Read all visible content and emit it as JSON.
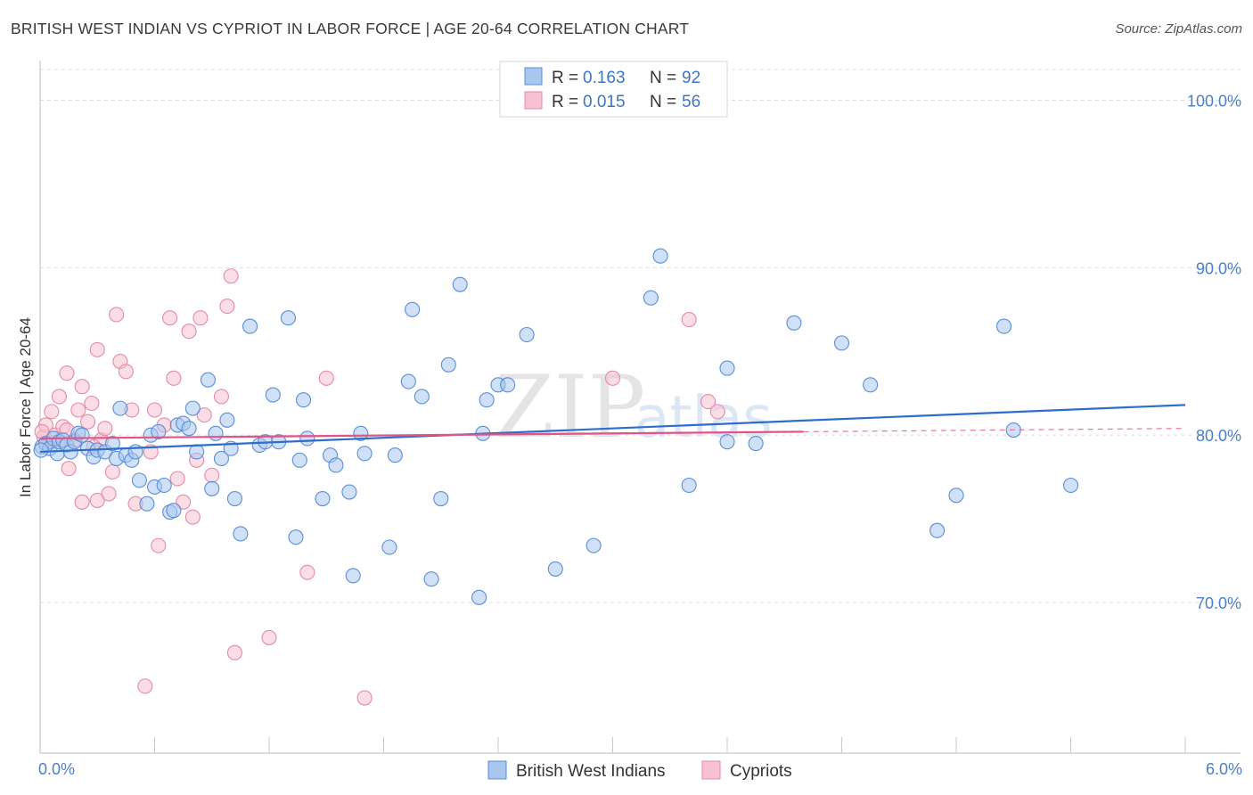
{
  "title": "BRITISH WEST INDIAN VS CYPRIOT IN LABOR FORCE | AGE 20-64 CORRELATION CHART",
  "source": "Source: ZipAtlas.com",
  "watermark": {
    "zip": "ZIP",
    "atlas": "atlas"
  },
  "legend_top": {
    "r_label": "R =",
    "n_label": "N =",
    "rows": [
      {
        "r": "0.163",
        "n": "92"
      },
      {
        "r": "0.015",
        "n": "56"
      }
    ]
  },
  "colors": {
    "blue_fill": "#a9c6ef",
    "blue_stroke": "#5a8fd6",
    "blue_line": "#2f6dcc",
    "pink_fill": "#f7c1d1",
    "pink_stroke": "#e58aa6",
    "pink_line": "#e05585",
    "tick_text": "#4a7fc9",
    "grid": "#dcdcdc"
  },
  "chart_data": {
    "type": "scatter",
    "title": "BRITISH WEST INDIAN VS CYPRIOT IN LABOR FORCE | AGE 20-64 CORRELATION CHART",
    "xlabel": "",
    "ylabel": "In Labor Force | Age 20-64",
    "xlim": [
      0,
      6
    ],
    "ylim": [
      61,
      102
    ],
    "x_tick_labels": [
      "0.0%",
      "6.0%"
    ],
    "y_ticks": [
      70,
      80,
      90,
      100
    ],
    "y_tick_labels": [
      "70.0%",
      "80.0%",
      "90.0%",
      "100.0%"
    ],
    "grid": "horizontal dashed",
    "legend_position": "bottom",
    "series": [
      {
        "name": "British West Indians",
        "color": "#a9c6ef",
        "trend": {
          "x": [
            0,
            6
          ],
          "y": [
            79.0,
            81.8
          ]
        },
        "points": [
          [
            0.01,
            79.3
          ],
          [
            0.03,
            79.5
          ],
          [
            0.05,
            79.2
          ],
          [
            0.07,
            79.8
          ],
          [
            0.09,
            78.9
          ],
          [
            0.1,
            79.6
          ],
          [
            0.12,
            79.7
          ],
          [
            0.14,
            79.4
          ],
          [
            0.16,
            79.0
          ],
          [
            0.18,
            79.6
          ],
          [
            0.2,
            80.1
          ],
          [
            0.22,
            80.0
          ],
          [
            0.25,
            79.2
          ],
          [
            0.28,
            78.7
          ],
          [
            0.3,
            79.1
          ],
          [
            0.34,
            79.0
          ],
          [
            0.38,
            79.5
          ],
          [
            0.4,
            78.6
          ],
          [
            0.42,
            81.6
          ],
          [
            0.45,
            78.8
          ],
          [
            0.48,
            78.5
          ],
          [
            0.5,
            79.0
          ],
          [
            0.52,
            77.3
          ],
          [
            0.56,
            75.9
          ],
          [
            0.58,
            80.0
          ],
          [
            0.6,
            76.9
          ],
          [
            0.62,
            80.2
          ],
          [
            0.65,
            77.0
          ],
          [
            0.68,
            75.4
          ],
          [
            0.7,
            75.5
          ],
          [
            0.72,
            80.6
          ],
          [
            0.75,
            80.7
          ],
          [
            0.78,
            80.4
          ],
          [
            0.8,
            81.6
          ],
          [
            0.82,
            79.0
          ],
          [
            0.88,
            83.3
          ],
          [
            0.9,
            76.8
          ],
          [
            0.92,
            80.1
          ],
          [
            0.95,
            78.6
          ],
          [
            0.98,
            80.9
          ],
          [
            1.0,
            79.2
          ],
          [
            1.02,
            76.2
          ],
          [
            1.05,
            74.1
          ],
          [
            1.1,
            86.5
          ],
          [
            1.15,
            79.4
          ],
          [
            1.18,
            79.6
          ],
          [
            1.22,
            82.4
          ],
          [
            1.25,
            79.6
          ],
          [
            1.3,
            87.0
          ],
          [
            1.34,
            73.9
          ],
          [
            1.36,
            78.5
          ],
          [
            1.38,
            82.1
          ],
          [
            1.4,
            79.8
          ],
          [
            1.48,
            76.2
          ],
          [
            1.52,
            78.8
          ],
          [
            1.55,
            78.2
          ],
          [
            1.62,
            76.6
          ],
          [
            1.64,
            71.6
          ],
          [
            1.68,
            80.1
          ],
          [
            1.7,
            78.9
          ],
          [
            1.83,
            73.3
          ],
          [
            1.86,
            78.8
          ],
          [
            1.93,
            83.2
          ],
          [
            1.95,
            87.5
          ],
          [
            2.0,
            82.3
          ],
          [
            2.05,
            71.4
          ],
          [
            2.1,
            76.2
          ],
          [
            2.14,
            84.2
          ],
          [
            2.2,
            89.0
          ],
          [
            2.3,
            70.3
          ],
          [
            2.32,
            80.1
          ],
          [
            2.34,
            82.1
          ],
          [
            2.4,
            83.0
          ],
          [
            2.45,
            83.0
          ],
          [
            2.55,
            86.0
          ],
          [
            2.7,
            72.0
          ],
          [
            2.9,
            73.4
          ],
          [
            3.2,
            88.2
          ],
          [
            3.25,
            90.7
          ],
          [
            3.4,
            77.0
          ],
          [
            3.6,
            84.0
          ],
          [
            3.6,
            79.6
          ],
          [
            3.75,
            79.5
          ],
          [
            3.95,
            86.7
          ],
          [
            4.2,
            85.5
          ],
          [
            4.35,
            83.0
          ],
          [
            4.7,
            74.3
          ],
          [
            4.8,
            76.4
          ],
          [
            5.05,
            86.5
          ],
          [
            5.1,
            80.3
          ],
          [
            5.4,
            77.0
          ],
          [
            0.005,
            79.1
          ]
        ]
      },
      {
        "name": "Cypriots",
        "color": "#f7c1d1",
        "trend": {
          "x": [
            0,
            4
          ],
          "y": [
            79.8,
            80.2
          ],
          "dashed_to": [
            6,
            80.4
          ]
        },
        "points": [
          [
            0.02,
            79.9
          ],
          [
            0.03,
            80.6
          ],
          [
            0.05,
            79.6
          ],
          [
            0.06,
            81.4
          ],
          [
            0.08,
            80.0
          ],
          [
            0.1,
            82.3
          ],
          [
            0.12,
            80.5
          ],
          [
            0.14,
            83.7
          ],
          [
            0.15,
            78.0
          ],
          [
            0.18,
            79.7
          ],
          [
            0.2,
            81.5
          ],
          [
            0.22,
            82.9
          ],
          [
            0.22,
            76.0
          ],
          [
            0.25,
            80.8
          ],
          [
            0.27,
            81.9
          ],
          [
            0.3,
            85.1
          ],
          [
            0.3,
            76.1
          ],
          [
            0.32,
            79.7
          ],
          [
            0.34,
            80.4
          ],
          [
            0.36,
            76.5
          ],
          [
            0.38,
            77.8
          ],
          [
            0.4,
            87.2
          ],
          [
            0.42,
            84.4
          ],
          [
            0.45,
            83.8
          ],
          [
            0.48,
            81.5
          ],
          [
            0.5,
            75.9
          ],
          [
            0.55,
            65.0
          ],
          [
            0.6,
            81.5
          ],
          [
            0.62,
            73.4
          ],
          [
            0.65,
            80.6
          ],
          [
            0.68,
            87.0
          ],
          [
            0.7,
            83.4
          ],
          [
            0.72,
            77.4
          ],
          [
            0.75,
            76.0
          ],
          [
            0.78,
            86.2
          ],
          [
            0.8,
            75.1
          ],
          [
            0.82,
            78.5
          ],
          [
            0.84,
            87.0
          ],
          [
            0.86,
            81.2
          ],
          [
            0.9,
            77.6
          ],
          [
            0.95,
            82.3
          ],
          [
            0.98,
            87.7
          ],
          [
            1.0,
            89.5
          ],
          [
            1.02,
            67.0
          ],
          [
            1.2,
            67.9
          ],
          [
            1.4,
            71.8
          ],
          [
            1.5,
            83.4
          ],
          [
            1.7,
            64.3
          ],
          [
            3.0,
            83.4
          ],
          [
            3.4,
            86.9
          ],
          [
            3.5,
            82.0
          ],
          [
            3.55,
            81.4
          ],
          [
            0.14,
            80.3
          ],
          [
            0.28,
            79.3
          ],
          [
            0.58,
            79.0
          ],
          [
            0.01,
            80.2
          ]
        ]
      }
    ]
  },
  "legend_bottom": [
    {
      "label": "British West Indians"
    },
    {
      "label": "Cypriots"
    }
  ]
}
